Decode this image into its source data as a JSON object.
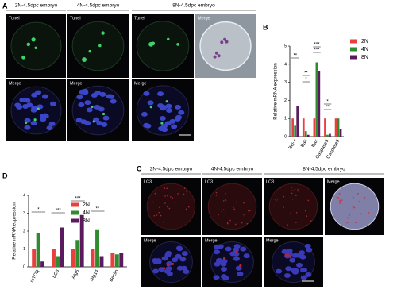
{
  "panels": {
    "A": {
      "label": "A",
      "headers": [
        "2N-4.5dpc embryo",
        "4N-4.5dpc embryo",
        "8N-4.5dpc embryo"
      ],
      "image_labels": [
        "Tunel",
        "Tunel",
        "Tunel",
        "Merge",
        "Merge",
        "Merge",
        "Merge"
      ]
    },
    "C": {
      "label": "C",
      "headers": [
        "2N-4.5dpc embryo",
        "4N-4.5dpc embryo",
        "8N-4.5dpc embryo"
      ],
      "image_labels": [
        "LC3",
        "LC3",
        "LC3",
        "Merge",
        "Merge",
        "Merge",
        "Merge"
      ]
    }
  },
  "chart_data": [
    {
      "type": "bar",
      "panel_label": "B",
      "y_label": "Relative mRNA expression",
      "categories": [
        "Bcl-x",
        "Bak",
        "Bax",
        "Caspase3",
        "Caspase9"
      ],
      "series": [
        {
          "name": "2N",
          "color": "#e8403f",
          "values": [
            1,
            1,
            1,
            1,
            1
          ]
        },
        {
          "name": "4N",
          "color": "#2e8b2e",
          "values": [
            0.6,
            0.3,
            4.1,
            0.1,
            1
          ]
        },
        {
          "name": "8N",
          "color": "#5b1a5e",
          "values": [
            1.7,
            0.1,
            3.6,
            0.15,
            0.4
          ]
        }
      ],
      "ylim": [
        0,
        5
      ],
      "yticks": [
        0,
        1,
        2,
        3,
        4,
        5
      ],
      "annotations": [
        "**",
        "**",
        "*",
        "***",
        "***",
        "*",
        "**"
      ]
    },
    {
      "type": "bar",
      "panel_label": "D",
      "y_label": "Relative mRNA expression",
      "categories": [
        "mTOR",
        "LC3",
        "Atg5",
        "Atg14",
        "Beclin"
      ],
      "series": [
        {
          "name": "2N",
          "color": "#e8403f",
          "values": [
            1,
            1,
            1,
            1,
            0.8
          ]
        },
        {
          "name": "4N",
          "color": "#2e8b2e",
          "values": [
            1.9,
            0.6,
            1.5,
            2.1,
            0.7
          ]
        },
        {
          "name": "8N",
          "color": "#5b1a5e",
          "values": [
            0.3,
            2.2,
            2.9,
            0.6,
            0.8
          ]
        }
      ],
      "ylim": [
        0,
        4
      ],
      "yticks": [
        0,
        1,
        2,
        3,
        4
      ],
      "annotations": [
        "*",
        "***",
        "***",
        "**"
      ]
    }
  ]
}
